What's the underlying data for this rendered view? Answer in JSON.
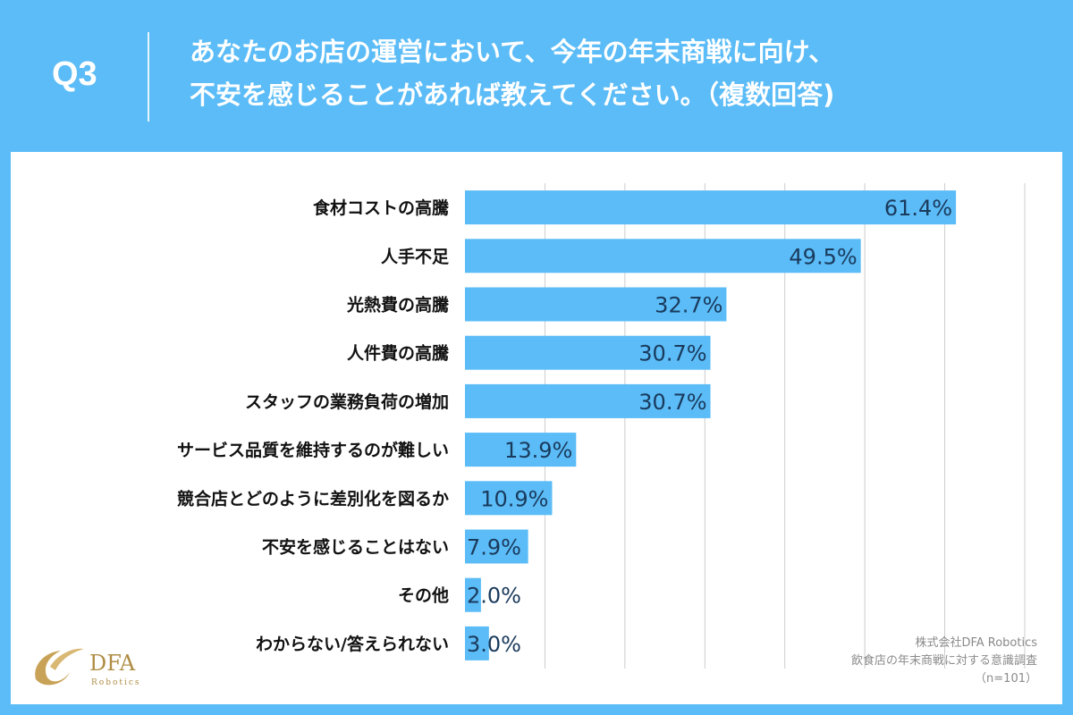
{
  "header": {
    "q_label": "Q3",
    "question_line1": "あなたのお店の運営において、今年の年末商戦に向け、",
    "question_line2": "不安を感じることがあれば教えてください。（複数回答)"
  },
  "colors": {
    "background": "#5bbcf7",
    "bar": "#5bbcf7",
    "grid": "#cccccc",
    "value_text": "#1a3a5c"
  },
  "logo": {
    "name": "DFA",
    "sub": "Robotics"
  },
  "footer": {
    "line1": "株式会社DFA Robotics",
    "line2": "飲食店の年末商戦に対する意識調査",
    "line3": "（n=101）"
  },
  "chart_data": {
    "type": "bar",
    "orientation": "horizontal",
    "categories": [
      "食材コストの高騰",
      "人手不足",
      "光熱費の高騰",
      "人件費の高騰",
      "スタッフの業務負荷の増加",
      "サービス品質を維持するのが難しい",
      "競合店とどのように差別化を図るか",
      "不安を感じることはない",
      "その他",
      "わからない/答えられない"
    ],
    "values": [
      61.4,
      49.5,
      32.7,
      30.7,
      30.7,
      13.9,
      10.9,
      7.9,
      2.0,
      3.0
    ],
    "value_labels": [
      "61.4%",
      "49.5%",
      "32.7%",
      "30.7%",
      "30.7%",
      "13.9%",
      "10.9%",
      "7.9%",
      "2.0%",
      "3.0%"
    ],
    "xlim": [
      0,
      70
    ],
    "grid": true,
    "title": "",
    "xlabel": "",
    "ylabel": ""
  }
}
